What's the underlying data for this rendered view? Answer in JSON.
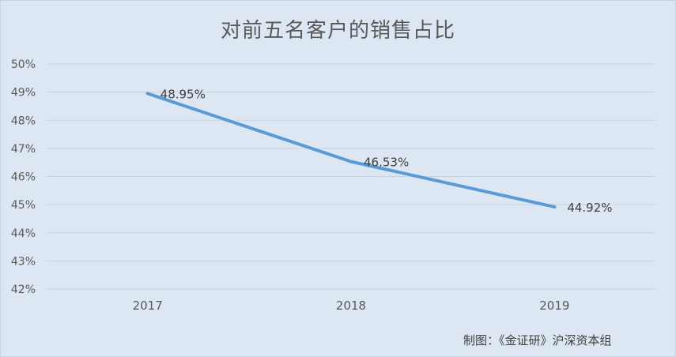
{
  "chart_data": {
    "type": "line",
    "title": "对前五名客户的销售占比",
    "categories": [
      "2017",
      "2018",
      "2019"
    ],
    "series": [
      {
        "values": [
          48.95,
          46.53,
          44.92
        ],
        "labels": [
          "48.95%",
          "46.53%",
          "44.92%"
        ]
      }
    ],
    "y_ticks": [
      "42%",
      "43%",
      "44%",
      "45%",
      "46%",
      "47%",
      "48%",
      "49%",
      "50%"
    ],
    "ylim": [
      42,
      50
    ],
    "grid": true,
    "line_color": "#5b9bd5"
  },
  "credit": "制图：《金证研》沪深资本组"
}
